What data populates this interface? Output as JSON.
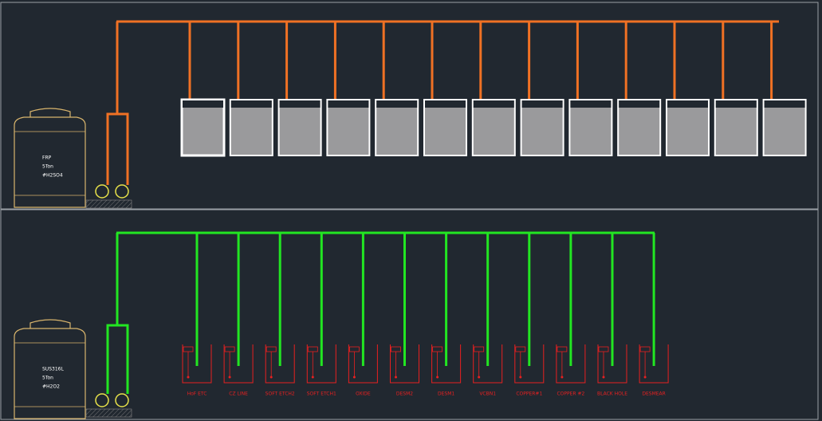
{
  "top_tank": {
    "lines": [
      "FRP",
      "5Ton",
      "#H2SO4"
    ]
  },
  "bottom_tank": {
    "lines": [
      "SUS316L",
      "5Ton",
      "#H2O2"
    ]
  },
  "bottom_baths": [
    "HoF ETC",
    "CZ LINE",
    "SOFT ETCH2",
    "SOFT ETCH1",
    "OXIDE",
    "DESM2",
    "DESM1",
    "VCBN1",
    "COPPER#1",
    "COPPER #2",
    "BLACK HOLE",
    "DESMEAR"
  ]
}
